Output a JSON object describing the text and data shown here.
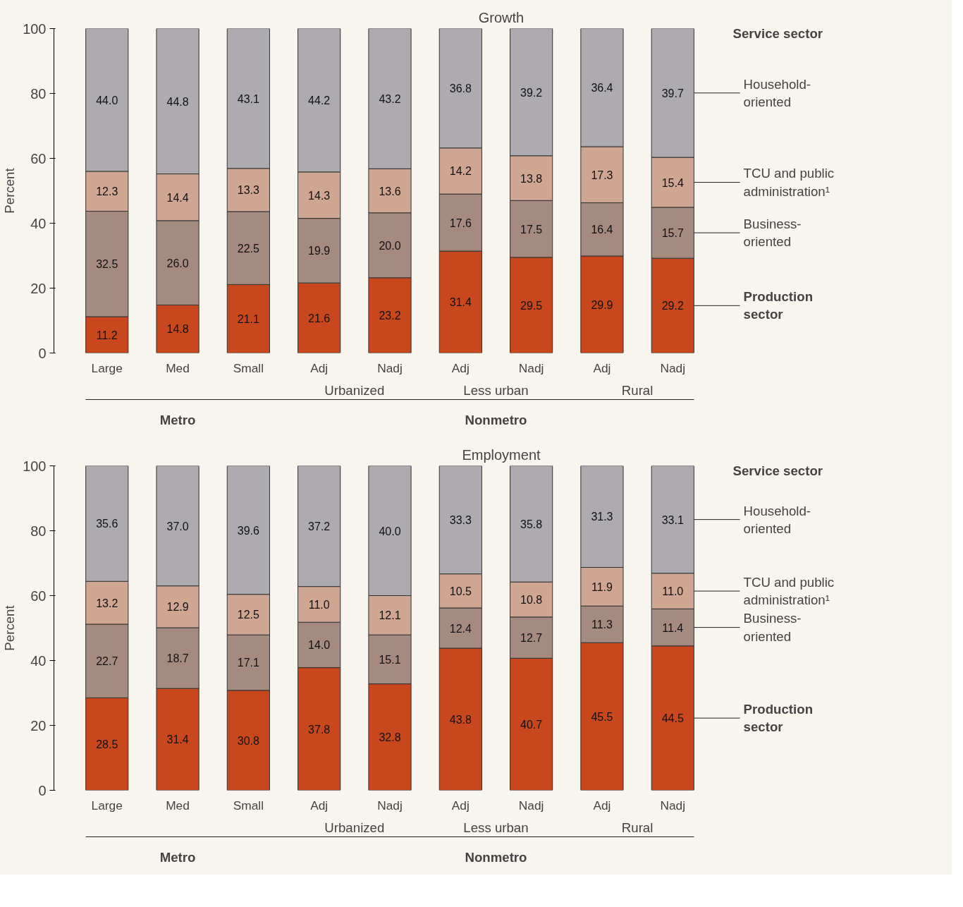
{
  "chart_data": [
    {
      "type": "bar",
      "stacked": true,
      "title": "Growth",
      "ylabel": "Percent",
      "categories": [
        "Large",
        "Med",
        "Small",
        "Adj",
        "Nadj",
        "Adj",
        "Nadj",
        "Adj",
        "Nadj"
      ],
      "series": [
        {
          "name": "Production sector",
          "color": "#c9471c",
          "values": [
            11.2,
            14.8,
            21.1,
            21.6,
            23.2,
            31.4,
            29.5,
            29.9,
            29.2
          ],
          "value_labels": [
            "11.2",
            "14.8",
            "21.1",
            "21.6",
            "23.2",
            "31.4",
            "29.5",
            "29.9",
            "29.2"
          ]
        },
        {
          "name": "Business-oriented",
          "color": "#a58a80",
          "values": [
            32.5,
            26.0,
            22.5,
            19.9,
            20.0,
            17.6,
            17.5,
            16.4,
            15.7
          ],
          "value_labels": [
            "32.5",
            "26.0",
            "22.5",
            "19.9",
            "20.0",
            "17.6",
            "17.5",
            "16.4",
            "15.7"
          ]
        },
        {
          "name": "TCU and public administration¹",
          "color": "#cfa692",
          "values": [
            12.3,
            14.4,
            13.3,
            14.3,
            13.6,
            14.2,
            13.8,
            17.3,
            15.4
          ],
          "value_labels": [
            "12.3",
            "14.4",
            "13.3",
            "14.3",
            "13.6",
            "14.2",
            "13.8",
            "17.3",
            "15.4"
          ]
        },
        {
          "name": "Household-oriented",
          "color": "#aeabb0",
          "values": [
            44.0,
            44.8,
            43.1,
            44.2,
            43.2,
            36.8,
            39.2,
            36.4,
            39.7
          ],
          "value_labels": [
            "44.0",
            "44.8",
            "43.1",
            "44.2",
            "43.2",
            "36.8",
            "39.2",
            "36.4",
            "39.7"
          ]
        }
      ],
      "ylim": [
        0,
        100
      ],
      "yticks": [
        0,
        20,
        40,
        60,
        80,
        100
      ],
      "grid": false,
      "legend": false,
      "annotations": [
        "Service sector",
        "Urbanized",
        "Less urban",
        "Rural",
        "Metro",
        "Nonmetro"
      ]
    },
    {
      "type": "bar",
      "stacked": true,
      "title": "Employment",
      "ylabel": "Percent",
      "categories": [
        "Large",
        "Med",
        "Small",
        "Adj",
        "Nadj",
        "Adj",
        "Nadj",
        "Adj",
        "Nadj"
      ],
      "series": [
        {
          "name": "Production sector",
          "color": "#c9471c",
          "values": [
            28.5,
            31.4,
            30.8,
            37.8,
            32.8,
            43.8,
            40.7,
            45.5,
            44.5
          ],
          "value_labels": [
            "28.5",
            "31.4",
            "30.8",
            "37.8",
            "32.8",
            "43.8",
            "40.7",
            "45.5",
            "44.5"
          ]
        },
        {
          "name": "Business-oriented",
          "color": "#a58a80",
          "values": [
            22.7,
            18.7,
            17.1,
            14.0,
            15.1,
            12.4,
            12.7,
            11.3,
            11.4
          ],
          "value_labels": [
            "22.7",
            "18.7",
            "17.1",
            "14.0",
            "15.1",
            "12.4",
            "12.7",
            "11.3",
            "11.4"
          ]
        },
        {
          "name": "TCU and public administration¹",
          "color": "#cfa692",
          "values": [
            13.2,
            12.9,
            12.5,
            11.0,
            12.1,
            10.5,
            10.8,
            11.9,
            11.0
          ],
          "value_labels": [
            "13.2",
            "12.9",
            "12.5",
            "11.0",
            "12.1",
            "10.5",
            "10.8",
            "11.9",
            "11.0"
          ]
        },
        {
          "name": "Household-oriented",
          "color": "#aeabb0",
          "values": [
            35.6,
            37.0,
            39.6,
            37.2,
            40.0,
            33.3,
            35.8,
            31.3,
            33.1
          ],
          "value_labels": [
            "35.6",
            "37.0",
            "39.6",
            "37.2",
            "40.0",
            "33.3",
            "35.8",
            "31.3",
            "33.1"
          ]
        }
      ],
      "ylim": [
        0,
        100
      ],
      "yticks": [
        0,
        20,
        40,
        60,
        80,
        100
      ],
      "grid": false,
      "legend": false,
      "annotations": [
        "Service sector",
        "Urbanized",
        "Less urban",
        "Rural",
        "Metro",
        "Nonmetro"
      ]
    }
  ]
}
